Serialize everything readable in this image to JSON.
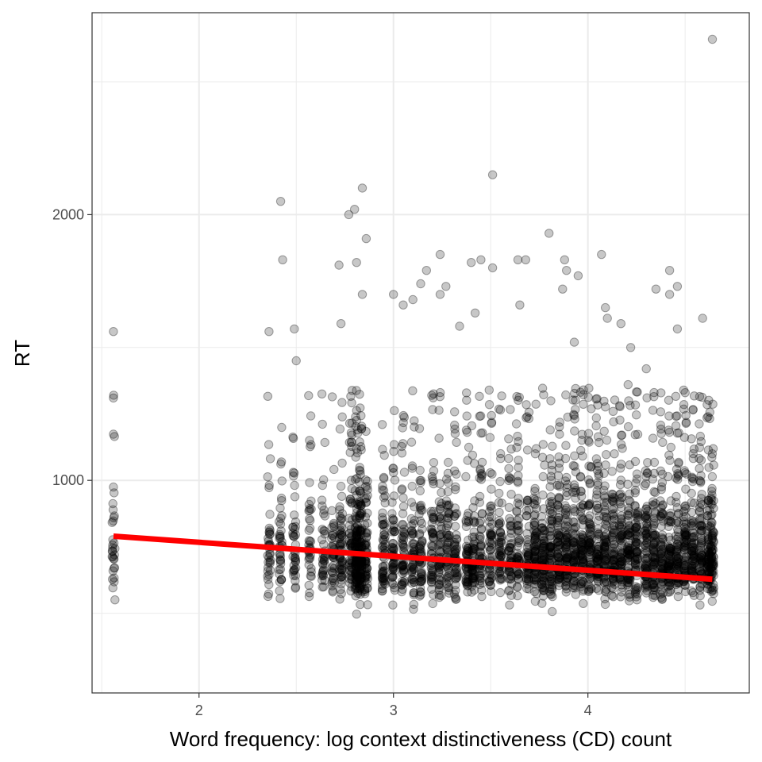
{
  "chart_data": {
    "type": "scatter",
    "title": "",
    "xlabel": "Word frequency: log context distinctiveness (CD) count",
    "ylabel": "RT",
    "xlim": [
      1.45,
      4.83
    ],
    "ylim": [
      200,
      2760
    ],
    "x_ticks": [
      2,
      3,
      4
    ],
    "x_tick_labels": [
      "2",
      "3",
      "4"
    ],
    "y_ticks": [
      1000,
      2000
    ],
    "y_tick_labels": [
      "1000",
      "2000"
    ],
    "grid": true,
    "legend": "none",
    "point_color": "#000000",
    "point_fill_opacity": 0.22,
    "trend_line": {
      "color": "#ff0000",
      "x": [
        1.56,
        4.64
      ],
      "y": [
        790,
        628
      ]
    },
    "x_levels": [
      1.56,
      2.36,
      2.42,
      2.49,
      2.57,
      2.64,
      2.69,
      2.73,
      2.78,
      2.81,
      2.83,
      2.86,
      2.95,
      3.0,
      3.05,
      3.1,
      3.14,
      3.2,
      3.24,
      3.28,
      3.32,
      3.38,
      3.41,
      3.45,
      3.5,
      3.55,
      3.6,
      3.64,
      3.69,
      3.73,
      3.77,
      3.81,
      3.85,
      3.89,
      3.93,
      3.97,
      4.01,
      4.05,
      4.09,
      4.13,
      4.17,
      4.21,
      4.25,
      4.3,
      4.34,
      4.38,
      4.42,
      4.46,
      4.5,
      4.54,
      4.58,
      4.62,
      4.64
    ],
    "outliers": [
      [
        1.56,
        1560
      ],
      [
        1.56,
        1310
      ],
      [
        1.56,
        975
      ],
      [
        2.36,
        1560
      ],
      [
        2.42,
        2050
      ],
      [
        2.43,
        1830
      ],
      [
        2.49,
        1570
      ],
      [
        2.5,
        1450
      ],
      [
        2.72,
        1810
      ],
      [
        2.73,
        1590
      ],
      [
        2.77,
        2000
      ],
      [
        2.8,
        2020
      ],
      [
        2.81,
        1820
      ],
      [
        2.84,
        2100
      ],
      [
        2.86,
        1910
      ],
      [
        2.84,
        1700
      ],
      [
        3.0,
        1700
      ],
      [
        3.05,
        1660
      ],
      [
        3.1,
        1680
      ],
      [
        3.14,
        1740
      ],
      [
        3.17,
        1790
      ],
      [
        3.24,
        1850
      ],
      [
        3.24,
        1700
      ],
      [
        3.27,
        1730
      ],
      [
        3.34,
        1580
      ],
      [
        3.4,
        1820
      ],
      [
        3.42,
        1630
      ],
      [
        3.45,
        1830
      ],
      [
        3.51,
        1800
      ],
      [
        3.51,
        2150
      ],
      [
        3.64,
        1830
      ],
      [
        3.65,
        1660
      ],
      [
        3.68,
        1830
      ],
      [
        3.8,
        1930
      ],
      [
        3.88,
        1830
      ],
      [
        3.89,
        1790
      ],
      [
        3.87,
        1720
      ],
      [
        3.95,
        1770
      ],
      [
        4.07,
        1850
      ],
      [
        4.09,
        1650
      ],
      [
        4.1,
        1610
      ],
      [
        4.17,
        1590
      ],
      [
        4.35,
        1720
      ],
      [
        4.42,
        1790
      ],
      [
        4.46,
        1730
      ],
      [
        4.42,
        1700
      ],
      [
        4.46,
        1570
      ],
      [
        4.59,
        1610
      ],
      [
        4.64,
        2660
      ],
      [
        4.5,
        1330
      ],
      [
        4.3,
        1420
      ],
      [
        4.22,
        1500
      ],
      [
        3.93,
        1520
      ]
    ]
  }
}
